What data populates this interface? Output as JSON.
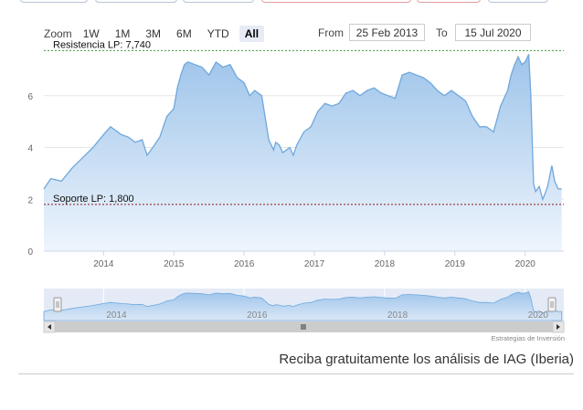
{
  "toolbar": {
    "zoom_label": "Zoom",
    "buttons": [
      "1W",
      "1M",
      "3M",
      "6M",
      "YTD",
      "All"
    ],
    "active": "All",
    "from_label": "From",
    "from_value": "25 Feb 2013",
    "to_label": "To",
    "to_value": "15 Jul 2020"
  },
  "chart_data": {
    "type": "area",
    "x_start_year": 2013.15,
    "x_end_year": 2020.55,
    "ylim": [
      0,
      8
    ],
    "yticks": [
      "0",
      "2",
      "4",
      "6"
    ],
    "xticks": [
      "2014",
      "2015",
      "2016",
      "2017",
      "2018",
      "2019",
      "2020"
    ],
    "grid": true,
    "series": [
      {
        "x": [
          2013.15,
          2013.25,
          2013.4,
          2013.55,
          2013.7,
          2013.85,
          2014.0,
          2014.1,
          2014.15,
          2014.25,
          2014.35,
          2014.45,
          2014.55,
          2014.62,
          2014.7,
          2014.8,
          2014.9,
          2015.0,
          2015.05,
          2015.1,
          2015.15,
          2015.2,
          2015.3,
          2015.4,
          2015.5,
          2015.6,
          2015.7,
          2015.8,
          2015.9,
          2016.0,
          2016.08,
          2016.15,
          2016.25,
          2016.35,
          2016.42,
          2016.45,
          2016.5,
          2016.55,
          2016.65,
          2016.7,
          2016.75,
          2016.85,
          2016.95,
          2017.05,
          2017.15,
          2017.25,
          2017.35,
          2017.45,
          2017.55,
          2017.65,
          2017.75,
          2017.85,
          2017.95,
          2018.05,
          2018.15,
          2018.25,
          2018.35,
          2018.45,
          2018.55,
          2018.65,
          2018.75,
          2018.85,
          2018.95,
          2019.05,
          2019.15,
          2019.25,
          2019.35,
          2019.45,
          2019.55,
          2019.65,
          2019.75,
          2019.8,
          2019.85,
          2019.9,
          2019.95,
          2020.0,
          2020.05,
          2020.08,
          2020.12,
          2020.15,
          2020.2,
          2020.25,
          2020.28,
          2020.32,
          2020.38,
          2020.42,
          2020.47,
          2020.52
        ],
        "values": [
          2.4,
          2.8,
          2.7,
          3.2,
          3.6,
          4.0,
          4.5,
          4.8,
          4.7,
          4.5,
          4.4,
          4.2,
          4.3,
          3.7,
          4.0,
          4.4,
          5.2,
          5.5,
          6.3,
          6.8,
          7.2,
          7.3,
          7.2,
          7.1,
          6.8,
          7.3,
          7.1,
          7.2,
          6.7,
          6.5,
          6.0,
          6.2,
          6.0,
          4.3,
          3.9,
          4.2,
          4.1,
          3.8,
          4.0,
          3.7,
          4.1,
          4.6,
          4.8,
          5.4,
          5.7,
          5.6,
          5.7,
          6.1,
          6.2,
          6.0,
          6.2,
          6.3,
          6.1,
          6.0,
          5.9,
          6.8,
          6.9,
          6.8,
          6.7,
          6.5,
          6.2,
          6.0,
          6.2,
          6.0,
          5.8,
          5.2,
          4.8,
          4.8,
          4.6,
          5.6,
          6.2,
          6.8,
          7.2,
          7.5,
          7.2,
          7.3,
          7.6,
          6.0,
          2.6,
          2.3,
          2.5,
          2.0,
          2.2,
          2.5,
          3.3,
          2.7,
          2.4,
          2.4
        ]
      }
    ],
    "annotations": [
      {
        "label": "Resistencia LP: 7,740",
        "value": 7.74
      },
      {
        "label": "Soporte LP: 1,800",
        "value": 1.8
      }
    ],
    "navigator_ticks": [
      "2014",
      "2016",
      "2018",
      "2020"
    ],
    "colors": {
      "line": "#6fa8dc",
      "fill_top": "#9ec4ea",
      "fill_bottom": "#eef5fd",
      "resistance": "#3c9a3c",
      "support": "#8b1a1a",
      "grid": "#e6e6e6"
    }
  },
  "credit": "Estrategias de Inversión",
  "cta": "Reciba gratuitamente los análisis de IAG (Iberia)"
}
